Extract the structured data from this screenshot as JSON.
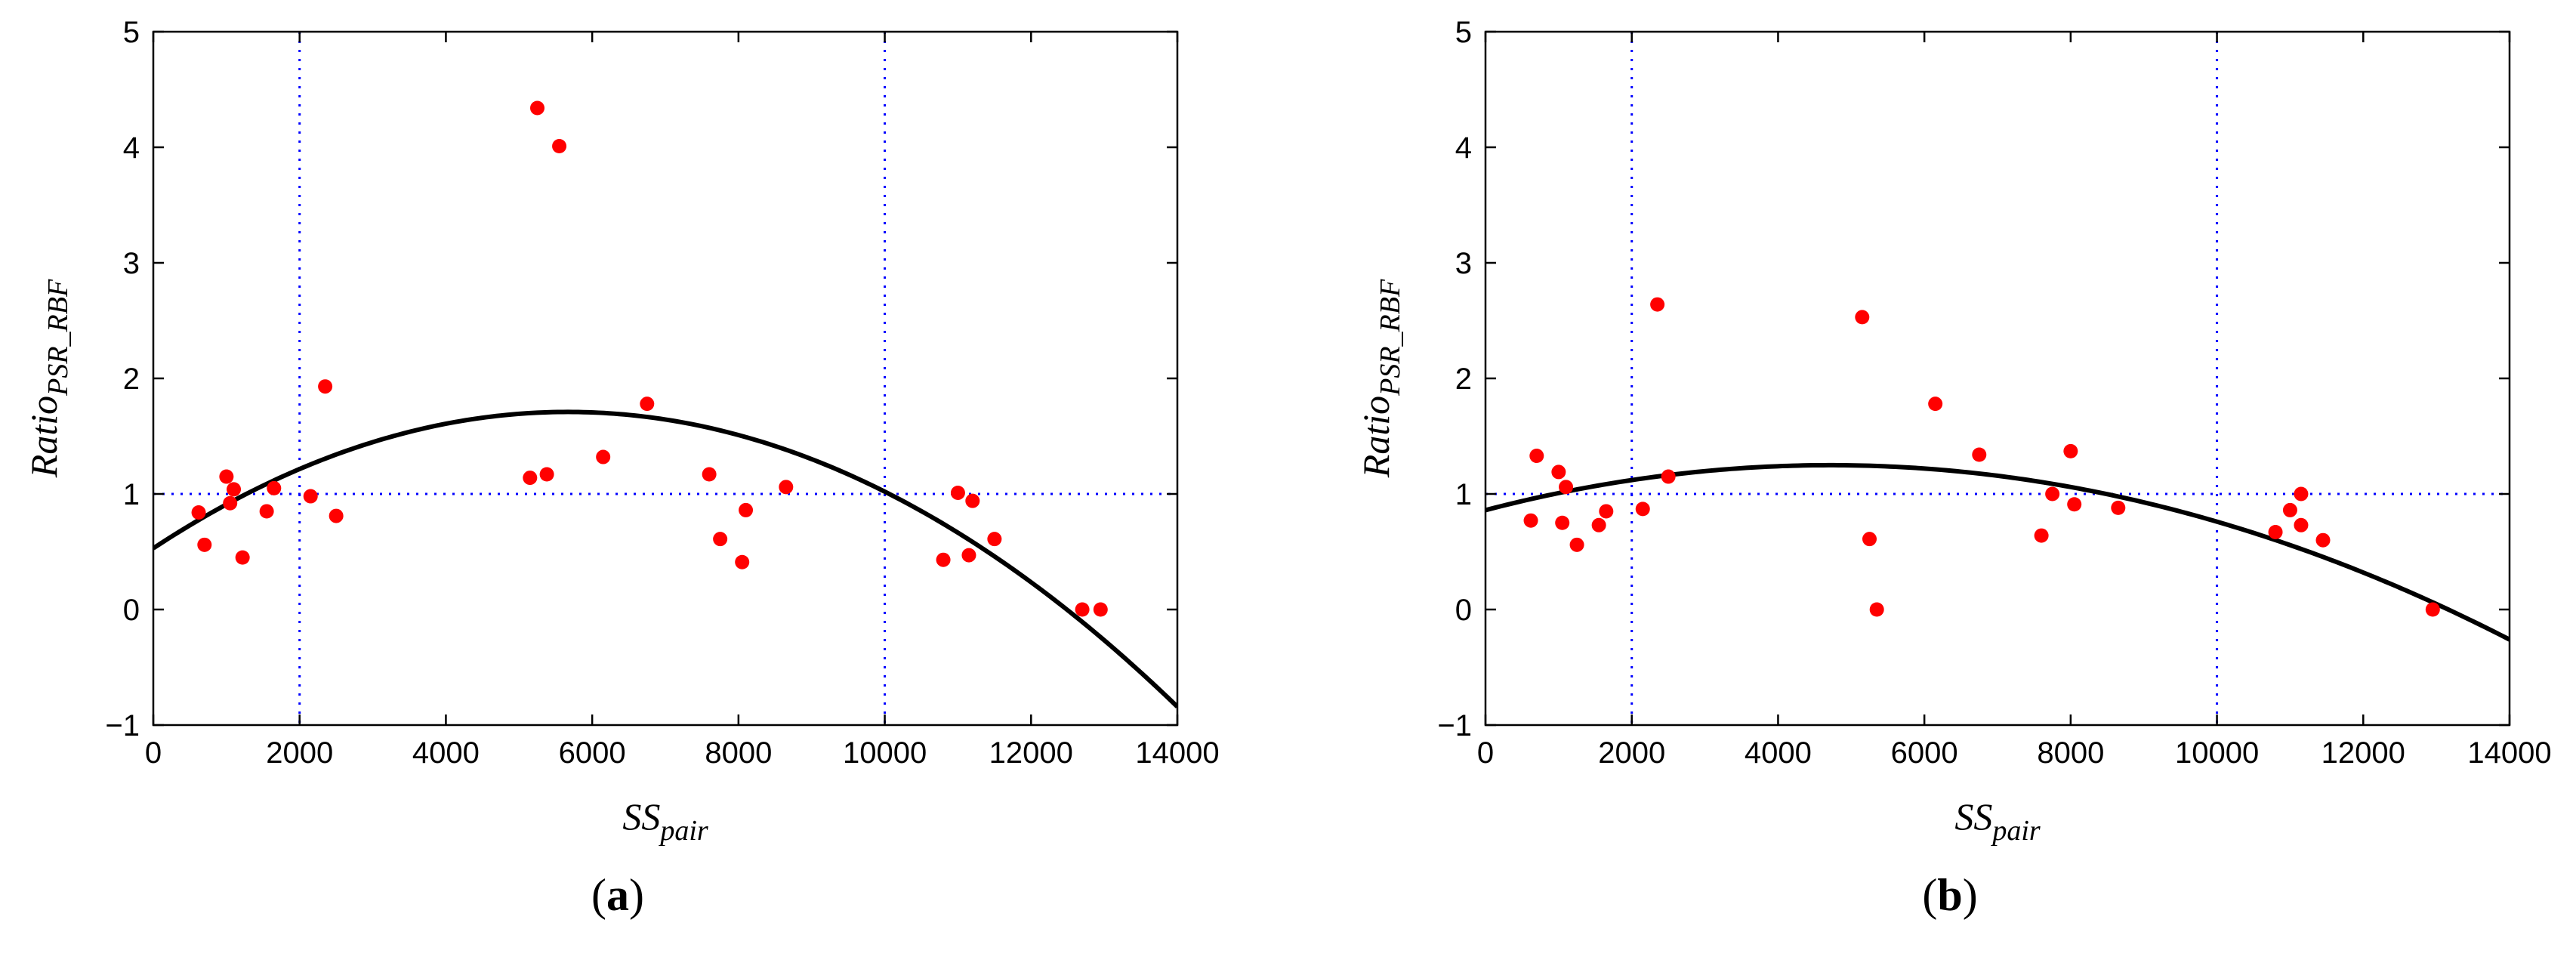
{
  "chart_data": [
    {
      "type": "scatter",
      "panel_label": "a",
      "xlabel": {
        "base": "SS",
        "sub": "pair"
      },
      "ylabel": {
        "base": "Ratio",
        "sub": "PSR_RBF"
      },
      "xlim": [
        0,
        14000
      ],
      "ylim": [
        -1,
        5
      ],
      "xticks": [
        0,
        2000,
        4000,
        6000,
        8000,
        10000,
        12000,
        14000
      ],
      "yticks": [
        -1,
        0,
        1,
        2,
        3,
        4,
        5
      ],
      "ytick_labels": [
        "−1",
        "0",
        "1",
        "2",
        "3",
        "4",
        "5"
      ],
      "reference_lines": {
        "x": [
          2000,
          10000
        ],
        "y": [
          1
        ],
        "color": "#0000ff"
      },
      "points_color": "#ff0000",
      "fit_color": "#000000",
      "points": [
        [
          620,
          0.84
        ],
        [
          700,
          0.56
        ],
        [
          1000,
          1.15
        ],
        [
          1050,
          0.92
        ],
        [
          1100,
          1.04
        ],
        [
          1220,
          0.45
        ],
        [
          1550,
          0.85
        ],
        [
          1650,
          1.05
        ],
        [
          2150,
          0.98
        ],
        [
          2350,
          1.93
        ],
        [
          2500,
          0.81
        ],
        [
          5150,
          1.14
        ],
        [
          5250,
          4.34
        ],
        [
          5380,
          1.17
        ],
        [
          5550,
          4.01
        ],
        [
          6150,
          1.32
        ],
        [
          6750,
          1.78
        ],
        [
          7600,
          1.17
        ],
        [
          7750,
          0.61
        ],
        [
          8050,
          0.41
        ],
        [
          8100,
          0.86
        ],
        [
          8650,
          1.06
        ],
        [
          10800,
          0.43
        ],
        [
          11000,
          1.01
        ],
        [
          11150,
          0.47
        ],
        [
          11200,
          0.94
        ],
        [
          11500,
          0.61
        ],
        [
          12700,
          0.0
        ],
        [
          12950,
          0.0
        ]
      ],
      "fit_quadratic": {
        "a": -3.6735e-08,
        "b": 0.00041633,
        "c": 0.53
      }
    },
    {
      "type": "scatter",
      "panel_label": "b",
      "xlabel": {
        "base": "SS",
        "sub": "pair"
      },
      "ylabel": {
        "base": "Ratio",
        "sub": "PSR_RBF"
      },
      "xlim": [
        0,
        14000
      ],
      "ylim": [
        -1,
        5
      ],
      "xticks": [
        0,
        2000,
        4000,
        6000,
        8000,
        10000,
        12000,
        14000
      ],
      "yticks": [
        -1,
        0,
        1,
        2,
        3,
        4,
        5
      ],
      "ytick_labels": [
        "−1",
        "0",
        "1",
        "2",
        "3",
        "4",
        "5"
      ],
      "reference_lines": {
        "x": [
          2000,
          10000
        ],
        "y": [
          1
        ],
        "color": "#0000ff"
      },
      "points_color": "#ff0000",
      "fit_color": "#000000",
      "points": [
        [
          620,
          0.77
        ],
        [
          700,
          1.33
        ],
        [
          1000,
          1.19
        ],
        [
          1050,
          0.75
        ],
        [
          1100,
          1.06
        ],
        [
          1250,
          0.56
        ],
        [
          1550,
          0.73
        ],
        [
          1650,
          0.85
        ],
        [
          2150,
          0.87
        ],
        [
          2350,
          2.64
        ],
        [
          2500,
          1.15
        ],
        [
          5150,
          2.53
        ],
        [
          5250,
          0.61
        ],
        [
          5350,
          0.0
        ],
        [
          6150,
          1.78
        ],
        [
          6750,
          1.34
        ],
        [
          7600,
          0.64
        ],
        [
          7750,
          1.0
        ],
        [
          8000,
          1.37
        ],
        [
          8050,
          0.91
        ],
        [
          8650,
          0.88
        ],
        [
          10800,
          0.67
        ],
        [
          11000,
          0.86
        ],
        [
          11150,
          1.0
        ],
        [
          11150,
          0.73
        ],
        [
          11450,
          0.6
        ],
        [
          12950,
          0.0
        ]
      ],
      "fit_quadratic": {
        "a": -1.75e-08,
        "b": 0.000165,
        "c": 0.86
      }
    }
  ]
}
